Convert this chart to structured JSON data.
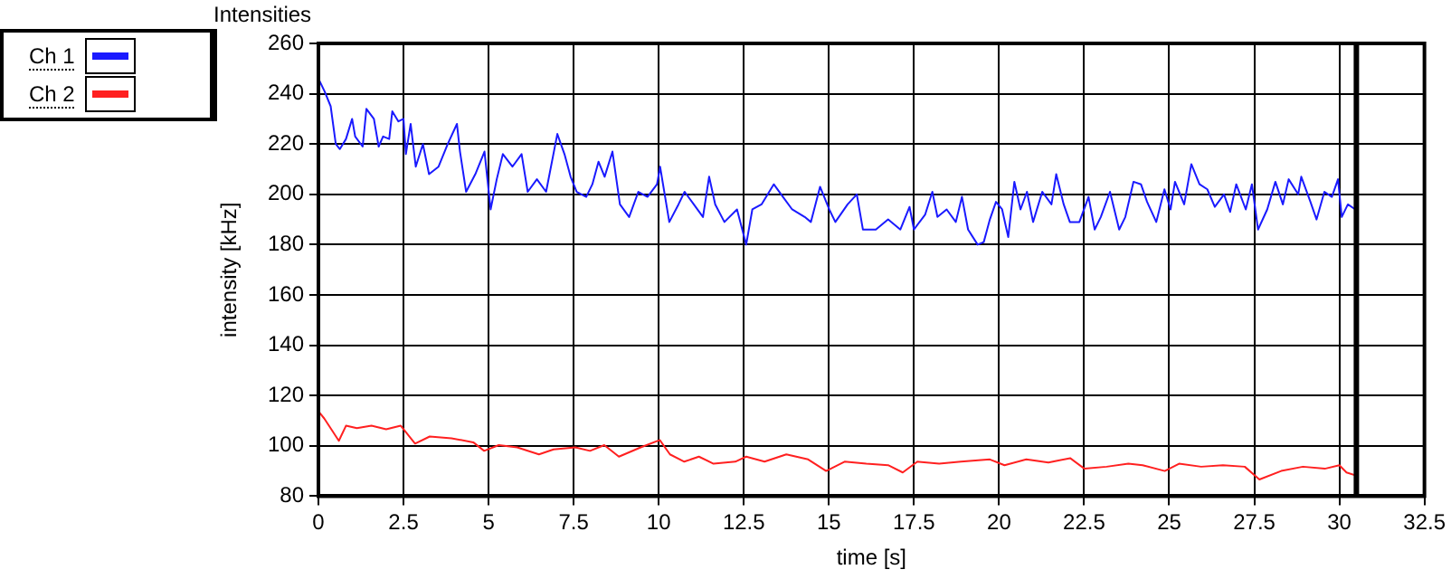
{
  "chart_data": {
    "type": "line",
    "title": "Intensities",
    "xlabel": "time [s]",
    "ylabel": "intensity [kHz]",
    "xlim": [
      0,
      32.5
    ],
    "xticks": [
      0,
      2.5,
      5,
      7.5,
      10,
      12.5,
      15,
      17.5,
      20,
      22.5,
      25,
      27.5,
      30,
      32.5
    ],
    "ylim": [
      80,
      260
    ],
    "yticks": [
      80,
      100,
      120,
      140,
      160,
      180,
      200,
      220,
      240,
      260
    ],
    "grid": true,
    "legend": "top left",
    "marker": "none",
    "line_style": "solid",
    "ref_lines": [
      {
        "axis": "x",
        "value": 30.5,
        "color": "#000000"
      }
    ],
    "series": [
      {
        "name": "Ch 1",
        "color": "#1a1aff",
        "x": [
          0,
          0.18,
          0.36,
          0.51,
          0.63,
          0.81,
          0.99,
          1.08,
          1.3,
          1.41,
          1.63,
          1.77,
          1.9,
          2.08,
          2.17,
          2.35,
          2.5,
          2.57,
          2.71,
          2.86,
          3.07,
          3.25,
          3.53,
          3.8,
          4.07,
          4.16,
          4.34,
          4.61,
          4.88,
          5.06,
          5.24,
          5.42,
          5.7,
          5.97,
          6.15,
          6.42,
          6.69,
          7.02,
          7.23,
          7.41,
          7.59,
          7.87,
          8.05,
          8.23,
          8.41,
          8.64,
          8.86,
          9.13,
          9.4,
          9.67,
          9.95,
          10.04,
          10.31,
          10.58,
          10.76,
          11.03,
          11.3,
          11.48,
          11.66,
          11.93,
          12.3,
          12.57,
          12.75,
          13.02,
          13.38,
          13.65,
          13.92,
          14.29,
          14.47,
          14.74,
          15.01,
          15.19,
          15.55,
          15.82,
          16.0,
          16.38,
          16.74,
          17.1,
          17.37,
          17.5,
          17.83,
          18.04,
          18.19,
          18.46,
          18.73,
          18.91,
          19.09,
          19.37,
          19.55,
          19.73,
          19.91,
          20.09,
          20.27,
          20.45,
          20.63,
          20.82,
          21.0,
          21.27,
          21.54,
          21.68,
          21.9,
          22.08,
          22.36,
          22.63,
          22.81,
          22.99,
          23.26,
          23.53,
          23.71,
          23.95,
          24.17,
          24.35,
          24.62,
          24.86,
          25.04,
          25.17,
          25.44,
          25.65,
          25.89,
          26.12,
          26.34,
          26.61,
          26.79,
          26.97,
          27.25,
          27.43,
          27.61,
          27.88,
          28.12,
          28.34,
          28.51,
          28.79,
          28.88,
          29.15,
          29.33,
          29.56,
          29.78,
          29.96,
          30.07,
          30.25,
          30.47
        ],
        "values": [
          246,
          241,
          235,
          220,
          218,
          222,
          230,
          223,
          219,
          234,
          230,
          219,
          223,
          222,
          233,
          229,
          230,
          216,
          228,
          211,
          220,
          208,
          211,
          220,
          228,
          217,
          201,
          208,
          217,
          194,
          206,
          216,
          211,
          216,
          201,
          206,
          201,
          224,
          216,
          207,
          201,
          199,
          204,
          213,
          207,
          217,
          196,
          191,
          201,
          199,
          204,
          211,
          189,
          196,
          201,
          196,
          191,
          207,
          196,
          189,
          194,
          180,
          194,
          196,
          204,
          199,
          194,
          191,
          189,
          203,
          194,
          189,
          196,
          200,
          186,
          186,
          190,
          186,
          195,
          186,
          192,
          201,
          191,
          194,
          189,
          199,
          186,
          180,
          181,
          190,
          197,
          194,
          183,
          205,
          194,
          201,
          189,
          201,
          196,
          208,
          196,
          189,
          189,
          199,
          186,
          191,
          201,
          186,
          191,
          205,
          204,
          197,
          189,
          202,
          194,
          205,
          196,
          212,
          204,
          202,
          195,
          200,
          193,
          204,
          194,
          204,
          186,
          194,
          205,
          196,
          206,
          200,
          207,
          197,
          190,
          201,
          199,
          206,
          191,
          196,
          194
        ]
      },
      {
        "name": "Ch 2",
        "color": "#ff2020",
        "x": [
          0,
          0.17,
          0.6,
          0.81,
          1.13,
          1.56,
          1.99,
          2.42,
          2.84,
          3.27,
          3.91,
          4.55,
          4.87,
          5.3,
          5.84,
          6.48,
          6.91,
          7.55,
          7.98,
          8.4,
          8.83,
          9.47,
          10.03,
          10.33,
          10.75,
          11.18,
          11.61,
          12.25,
          12.57,
          13.11,
          13.75,
          14.39,
          14.92,
          15.46,
          16.1,
          16.74,
          17.17,
          17.6,
          18.24,
          18.88,
          19.73,
          20.16,
          20.8,
          21.45,
          22.09,
          22.51,
          23.16,
          23.8,
          24.22,
          24.87,
          25.29,
          25.94,
          26.58,
          27.22,
          27.65,
          28.29,
          28.93,
          29.57,
          30.0,
          30.21,
          30.53
        ],
        "values": [
          113.7,
          110.9,
          102,
          108,
          107,
          108,
          106.6,
          108,
          100.9,
          103.7,
          103,
          101.4,
          98,
          100.3,
          99.4,
          96.6,
          98.6,
          99.4,
          98,
          100.3,
          95.7,
          99.4,
          102.3,
          96.6,
          93.7,
          95.7,
          92.9,
          93.7,
          95.7,
          93.7,
          96.6,
          94.6,
          90,
          93.7,
          92.9,
          92.3,
          89.4,
          93.7,
          92.9,
          93.7,
          94.6,
          92.3,
          94.6,
          93.4,
          95.1,
          90.9,
          91.7,
          92.9,
          92.3,
          90,
          92.9,
          91.7,
          92.3,
          91.7,
          86.6,
          90,
          91.7,
          90.9,
          92.3,
          89.4,
          88
        ]
      }
    ]
  }
}
